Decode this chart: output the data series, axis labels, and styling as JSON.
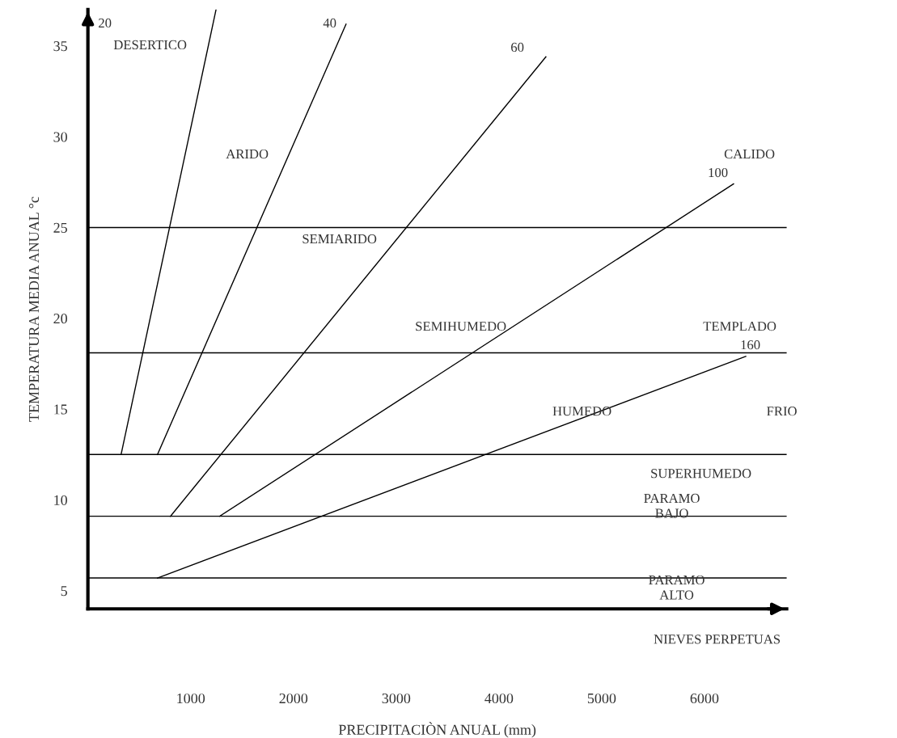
{
  "chart_data": {
    "type": "line",
    "xlabel": "PRECIPITACIÒN ANUAL (mm)",
    "ylabel": "TEMPERATURA MEDIA ANUAL °c",
    "xlim": [
      0,
      6800
    ],
    "ylim": [
      4,
      37
    ],
    "xticks": [
      1000,
      2000,
      3000,
      4000,
      5000,
      6000
    ],
    "yticks": [
      5,
      10,
      15,
      20,
      25,
      30,
      35
    ],
    "grid": false,
    "legend": false,
    "marker": "none",
    "line_style": "solid",
    "series": [
      {
        "color": "#000000",
        "x": [
          323,
          1247
        ],
        "values": [
          12.5,
          37
        ]
      },
      {
        "color": "#000000",
        "x": [
          677,
          2512
        ],
        "values": [
          12.5,
          36.2
        ]
      },
      {
        "color": "#000000",
        "x": [
          803,
          4457
        ],
        "values": [
          9.1,
          34.4
        ]
      },
      {
        "color": "#000000",
        "x": [
          1283,
          6283
        ],
        "values": [
          9.1,
          27.4
        ]
      },
      {
        "color": "#000000",
        "x": [
          677,
          6402
        ],
        "values": [
          5.7,
          17.9
        ]
      }
    ],
    "ref_lines": [
      {
        "axis": "y",
        "value": 25,
        "color": "#000000"
      },
      {
        "axis": "y",
        "value": 18.1,
        "color": "#000000"
      },
      {
        "axis": "y",
        "value": 12.5,
        "color": "#000000"
      },
      {
        "axis": "y",
        "value": 9.1,
        "color": "#000000"
      },
      {
        "axis": "y",
        "value": 5.7,
        "color": "#000000"
      }
    ],
    "annotations": [
      "20",
      "40",
      "60",
      "100",
      "160",
      "DESERTICO",
      "ARIDO",
      "SEMIARIDO",
      "SEMIHUMEDO",
      "HUMEDO",
      "CALIDO",
      "TEMPLADO",
      "FRIO",
      "SUPERHUMEDO",
      "PARAMO\nBAJO",
      "PARAMO\nALTO",
      "NIEVES PERPETUAS"
    ]
  }
}
